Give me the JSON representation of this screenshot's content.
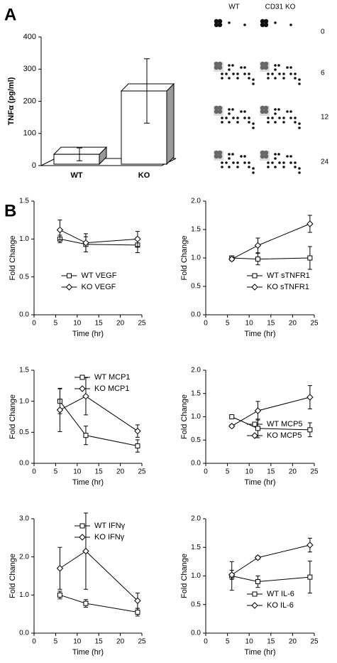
{
  "panel_labels": [
    "A",
    "B"
  ],
  "blot": {
    "columns": [
      "WT",
      "CD31 KO"
    ],
    "rows": [
      "0",
      "6",
      "12",
      "24"
    ]
  },
  "chart_data": [
    {
      "type": "bar3d",
      "ylabel": "TNFα (pg/ml)",
      "categories": [
        "WT",
        "KO"
      ],
      "values": [
        35,
        232
      ],
      "errors": [
        20,
        100
      ],
      "color": "#ffffff",
      "ylim": [
        0,
        400
      ],
      "yticks": [
        0,
        100,
        200,
        300,
        400
      ]
    },
    {
      "type": "line",
      "xlabel": "Time (hr)",
      "ylabel": "Fold Change",
      "x": [
        6,
        12,
        24
      ],
      "xlim": [
        0,
        25
      ],
      "xticks": [
        0,
        5,
        10,
        15,
        20,
        25
      ],
      "ylim": [
        0,
        1.5
      ],
      "yticks": [
        {
          "value": 0,
          "label": "0.0"
        },
        0.5,
        {
          "value": 1,
          "label": "1.0"
        },
        1.5
      ],
      "legend": "lower center",
      "series": [
        {
          "name": "WT VEGF",
          "color": "#000000",
          "marker": "square",
          "values": [
            1.0,
            0.93,
            0.92
          ],
          "errors": [
            0.05,
            0.1,
            0.1
          ]
        },
        {
          "name": "KO VEGF",
          "color": "#000000",
          "marker": "diamond",
          "values": [
            1.12,
            0.95,
            1.0
          ],
          "errors": [
            0.13,
            0.12,
            0.1
          ]
        }
      ]
    },
    {
      "type": "line",
      "xlabel": "Time (hr)",
      "ylabel": "Fold Change",
      "x": [
        6,
        12,
        24
      ],
      "xlim": [
        0,
        25
      ],
      "xticks": [
        0,
        5,
        10,
        15,
        20,
        25
      ],
      "ylim": [
        0,
        2
      ],
      "yticks": [
        {
          "value": 0,
          "label": "0.0"
        },
        0.5,
        {
          "value": 1,
          "label": "1.0"
        },
        1.5,
        {
          "value": 2,
          "label": "2.0"
        }
      ],
      "legend": "lower right",
      "series": [
        {
          "name": "WT sTNFR1",
          "color": "#000000",
          "marker": "square",
          "values": [
            1.0,
            0.98,
            1.0
          ],
          "errors": [
            0.03,
            0.1,
            0.2
          ]
        },
        {
          "name": "KO sTNFR1",
          "color": "#000000",
          "marker": "diamond",
          "values": [
            0.98,
            1.22,
            1.6
          ],
          "errors": [
            0.03,
            0.13,
            0.15
          ]
        }
      ]
    },
    {
      "type": "line",
      "xlabel": "Time (hr)",
      "ylabel": "Fold Change",
      "x": [
        6,
        12,
        24
      ],
      "xlim": [
        0,
        25
      ],
      "xticks": [
        0,
        5,
        10,
        15,
        20,
        25
      ],
      "ylim": [
        0,
        1.5
      ],
      "yticks": [
        {
          "value": 0,
          "label": "0.0"
        },
        0.5,
        {
          "value": 1,
          "label": "1.0"
        },
        1.5
      ],
      "legend": "upper right",
      "series": [
        {
          "name": "WT MCP1",
          "color": "#000000",
          "marker": "square",
          "values": [
            1.0,
            0.45,
            0.28
          ],
          "errors": [
            0.2,
            0.15,
            0.1
          ]
        },
        {
          "name": "KO MCP1",
          "color": "#000000",
          "marker": "diamond",
          "values": [
            0.86,
            1.08,
            0.52
          ],
          "errors": [
            0.35,
            0.3,
            0.1
          ]
        }
      ]
    },
    {
      "type": "line",
      "xlabel": "Time (hr)",
      "ylabel": "Fold Change",
      "x": [
        6,
        12,
        24
      ],
      "xlim": [
        0,
        25
      ],
      "xticks": [
        0,
        5,
        10,
        15,
        20,
        25
      ],
      "ylim": [
        0,
        2
      ],
      "yticks": [
        {
          "value": 0,
          "label": "0.0"
        },
        0.5,
        {
          "value": 1,
          "label": "1.0"
        },
        1.5,
        {
          "value": 2,
          "label": "2.0"
        }
      ],
      "legend": "lower right",
      "series": [
        {
          "name": "WT MCP5",
          "color": "#000000",
          "marker": "square",
          "values": [
            1.0,
            0.75,
            0.72
          ],
          "errors": [
            0.03,
            0.2,
            0.15
          ]
        },
        {
          "name": "KO MCP5",
          "color": "#000000",
          "marker": "diamond",
          "values": [
            0.8,
            1.13,
            1.42
          ],
          "errors": [
            0.03,
            0.2,
            0.25
          ]
        }
      ]
    },
    {
      "type": "line",
      "xlabel": "Time (hr)",
      "ylabel": "Fold Change",
      "x": [
        6,
        12,
        24
      ],
      "xlim": [
        0,
        25
      ],
      "xticks": [
        0,
        5,
        10,
        15,
        20,
        25
      ],
      "ylim": [
        0,
        3
      ],
      "yticks": [
        {
          "value": 0,
          "label": "0.0"
        },
        {
          "value": 1,
          "label": "1.0"
        },
        {
          "value": 2,
          "label": "2.0"
        },
        {
          "value": 3,
          "label": "3.0"
        }
      ],
      "legend": "upper right",
      "series": [
        {
          "name": "WT IFNγ",
          "color": "#000000",
          "marker": "square",
          "values": [
            1.0,
            0.78,
            0.55
          ],
          "errors": [
            0.1,
            0.1,
            0.1
          ]
        },
        {
          "name": "KO IFNγ",
          "color": "#000000",
          "marker": "diamond",
          "values": [
            1.7,
            2.15,
            0.85
          ],
          "errors": [
            0.55,
            1.0,
            0.2
          ]
        }
      ]
    },
    {
      "type": "line",
      "xlabel": "Time (hr)",
      "ylabel": "Fold Change",
      "x": [
        6,
        12,
        24
      ],
      "xlim": [
        0,
        25
      ],
      "xticks": [
        0,
        5,
        10,
        15,
        20,
        25
      ],
      "ylim": [
        0,
        2
      ],
      "yticks": [
        {
          "value": 0,
          "label": "0.0"
        },
        0.5,
        {
          "value": 1,
          "label": "1.0"
        },
        1.5,
        {
          "value": 2,
          "label": "2.0"
        }
      ],
      "legend": "lower right",
      "series": [
        {
          "name": "WT IL-6",
          "color": "#000000",
          "marker": "square",
          "values": [
            1.0,
            0.9,
            0.98
          ],
          "errors": [
            0.25,
            0.1,
            0.28
          ]
        },
        {
          "name": "KO IL-6",
          "color": "#000000",
          "marker": "diamond",
          "values": [
            1.02,
            1.32,
            1.54
          ],
          "errors": [
            0.08,
            0.03,
            0.12
          ]
        }
      ]
    }
  ]
}
